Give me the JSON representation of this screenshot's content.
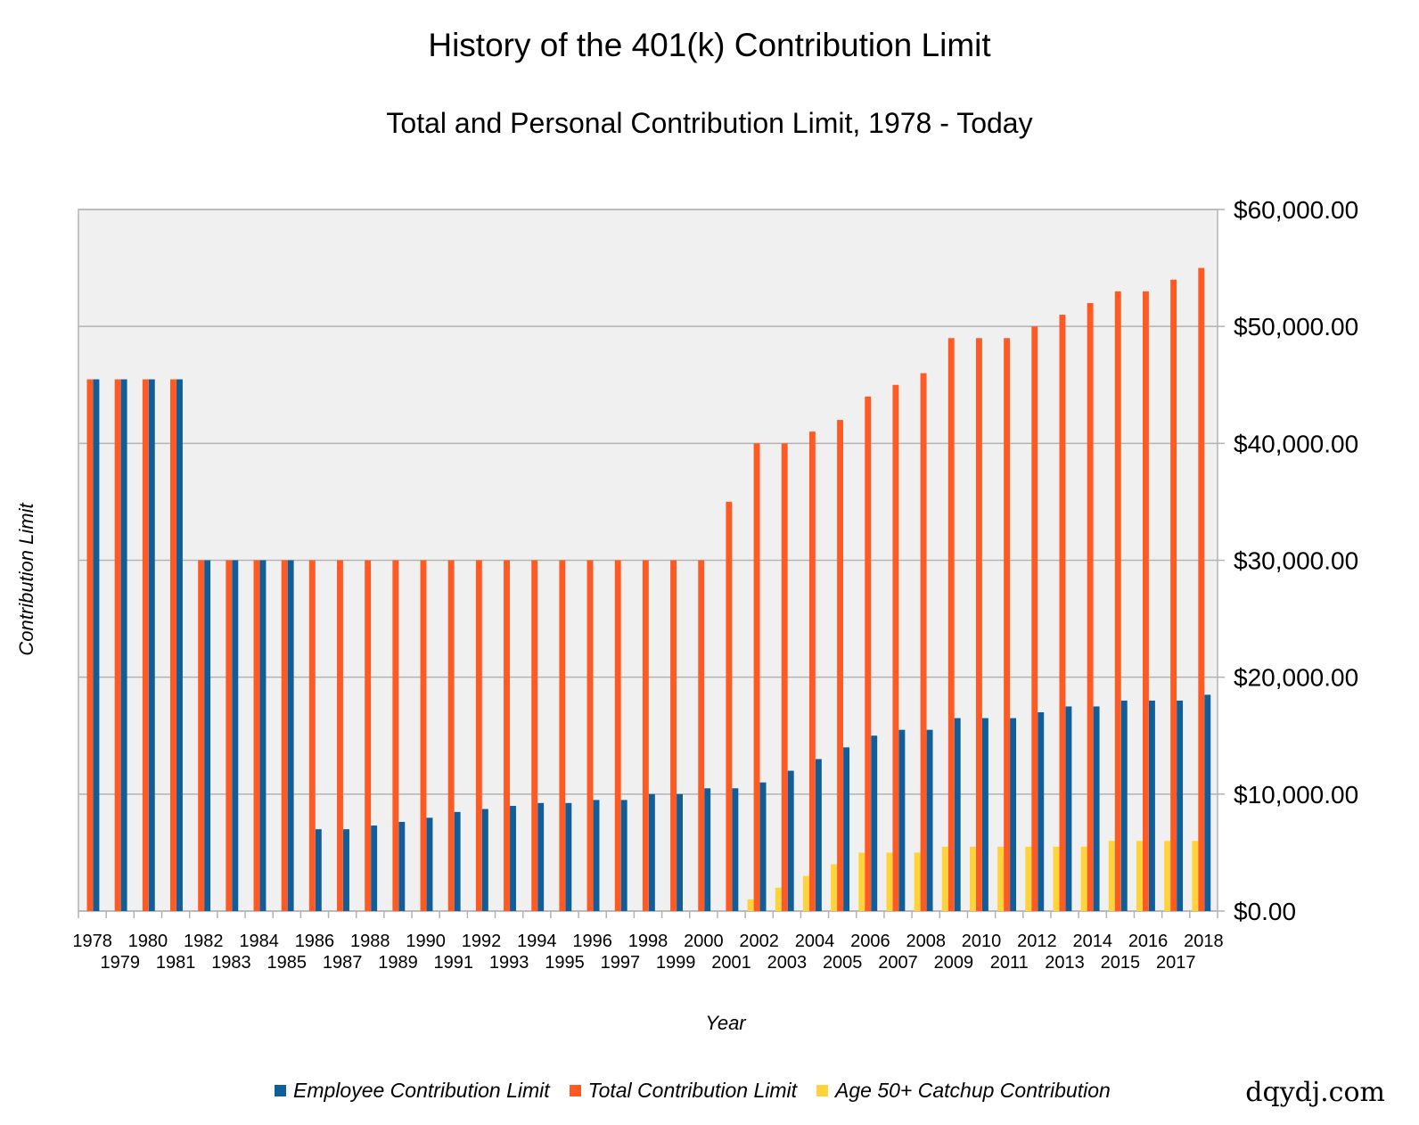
{
  "chart_data": {
    "type": "bar",
    "title": "History of the 401(k) Contribution Limit",
    "subtitle": "Total and Personal Contribution Limit, 1978 - Today",
    "xlabel": "Year",
    "ylabel": "Contribution Limit",
    "ylim": [
      0,
      60000
    ],
    "yticks": [
      "$0.00",
      "$10,000.00",
      "$20,000.00",
      "$30,000.00",
      "$40,000.00",
      "$50,000.00",
      "$60,000.00"
    ],
    "grid": true,
    "legend_position": "bottom",
    "categories": [
      "1978",
      "1979",
      "1980",
      "1981",
      "1982",
      "1983",
      "1984",
      "1985",
      "1986",
      "1987",
      "1988",
      "1989",
      "1990",
      "1991",
      "1992",
      "1993",
      "1994",
      "1995",
      "1996",
      "1997",
      "1998",
      "1999",
      "2000",
      "2001",
      "2002",
      "2003",
      "2004",
      "2005",
      "2006",
      "2007",
      "2008",
      "2009",
      "2010",
      "2011",
      "2012",
      "2013",
      "2014",
      "2015",
      "2016",
      "2017",
      "2018"
    ],
    "series": [
      {
        "name": "Employee Contribution Limit",
        "color": "#0f5d99",
        "values": [
          45475,
          45475,
          45475,
          45475,
          30000,
          30000,
          30000,
          30000,
          7000,
          7000,
          7313,
          7627,
          7979,
          8475,
          8728,
          8994,
          9240,
          9240,
          9500,
          9500,
          10000,
          10000,
          10500,
          10500,
          11000,
          12000,
          13000,
          14000,
          15000,
          15500,
          15500,
          16500,
          16500,
          16500,
          17000,
          17500,
          17500,
          18000,
          18000,
          18000,
          18500
        ]
      },
      {
        "name": "Total Contribution Limit",
        "color": "#ff5a23",
        "values": [
          45475,
          45475,
          45475,
          45475,
          30000,
          30000,
          30000,
          30000,
          30000,
          30000,
          30000,
          30000,
          30000,
          30000,
          30000,
          30000,
          30000,
          30000,
          30000,
          30000,
          30000,
          30000,
          30000,
          35000,
          40000,
          40000,
          41000,
          42000,
          44000,
          45000,
          46000,
          49000,
          49000,
          49000,
          50000,
          51000,
          52000,
          53000,
          53000,
          54000,
          55000
        ]
      },
      {
        "name": "Age 50+ Catchup Contribution",
        "color": "#ffd43a",
        "values": [
          0,
          0,
          0,
          0,
          0,
          0,
          0,
          0,
          0,
          0,
          0,
          0,
          0,
          0,
          0,
          0,
          0,
          0,
          0,
          0,
          0,
          0,
          0,
          0,
          1000,
          2000,
          3000,
          4000,
          5000,
          5000,
          5000,
          5500,
          5500,
          5500,
          5500,
          5500,
          5500,
          6000,
          6000,
          6000,
          6000
        ]
      }
    ]
  },
  "watermark": "dqydj.com"
}
